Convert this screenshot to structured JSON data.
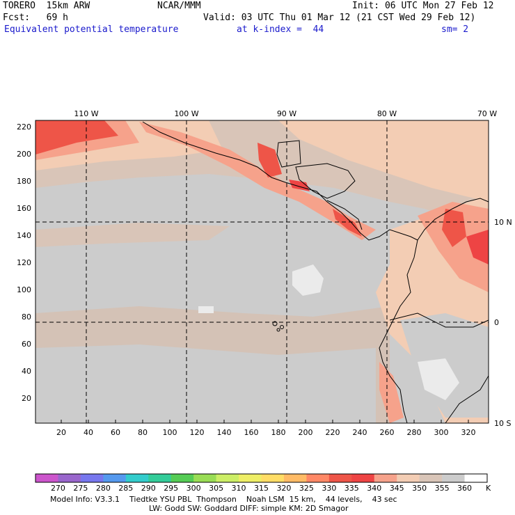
{
  "header": {
    "model": "TORERO  15km ARW",
    "center": "NCAR/MMM",
    "init": "Init: 06 UTC Mon 27 Feb 12",
    "fcst": "Fcst:   69 h",
    "valid": "Valid: 03 UTC Thu 01 Mar 12 (21 CST Wed 29 Feb 12)",
    "field": "Equivalent potential temperature",
    "level": "at k-index =  44",
    "smooth": "sm= 2"
  },
  "map": {
    "lon_labels": [
      "110 W",
      "100 W",
      "90 W",
      "80 W",
      "70 W"
    ],
    "lat_labels": [
      "10 N",
      "0",
      "10 S"
    ],
    "x_ticks": [
      "20",
      "40",
      "60",
      "80",
      "100",
      "120",
      "140",
      "160",
      "180",
      "200",
      "220",
      "240",
      "260",
      "280",
      "300",
      "320"
    ],
    "y_ticks": [
      "20",
      "40",
      "60",
      "80",
      "100",
      "120",
      "140",
      "160",
      "180",
      "200",
      "220"
    ],
    "colors": {
      "ocean_gray": "#cccccc",
      "warm_tan": "#d9c5b8",
      "peach": "#f3cdb4",
      "salmon": "#f6a28b",
      "red": "#ee5548",
      "bright_red": "#e83a3a",
      "white_patch": "#ebebeb"
    }
  },
  "colorbar": {
    "labels": [
      "270",
      "275",
      "280",
      "285",
      "290",
      "295",
      "300",
      "305",
      "310",
      "315",
      "320",
      "325",
      "330",
      "335",
      "340",
      "345",
      "350",
      "355",
      "360"
    ],
    "unit": "K",
    "colors": [
      "#cc55cc",
      "#9966cc",
      "#7777ee",
      "#5599ee",
      "#33cccc",
      "#33cc99",
      "#55cc55",
      "#99dd55",
      "#ccee66",
      "#eeee66",
      "#ffdd66",
      "#ffbb66",
      "#ff8866",
      "#ee5548",
      "#ee4444",
      "#f6a28b",
      "#f3cdb4",
      "#d9c5b8",
      "#cccccc",
      "#ffffff"
    ]
  },
  "footer": {
    "line1": "Model Info: V3.3.1    Tiedtke YSU PBL  Thompson    Noah LSM  15 km,    44 levels,    43 sec",
    "line2": "LW: Godd SW: Goddard DIFF: simple KM: 2D Smagor"
  }
}
